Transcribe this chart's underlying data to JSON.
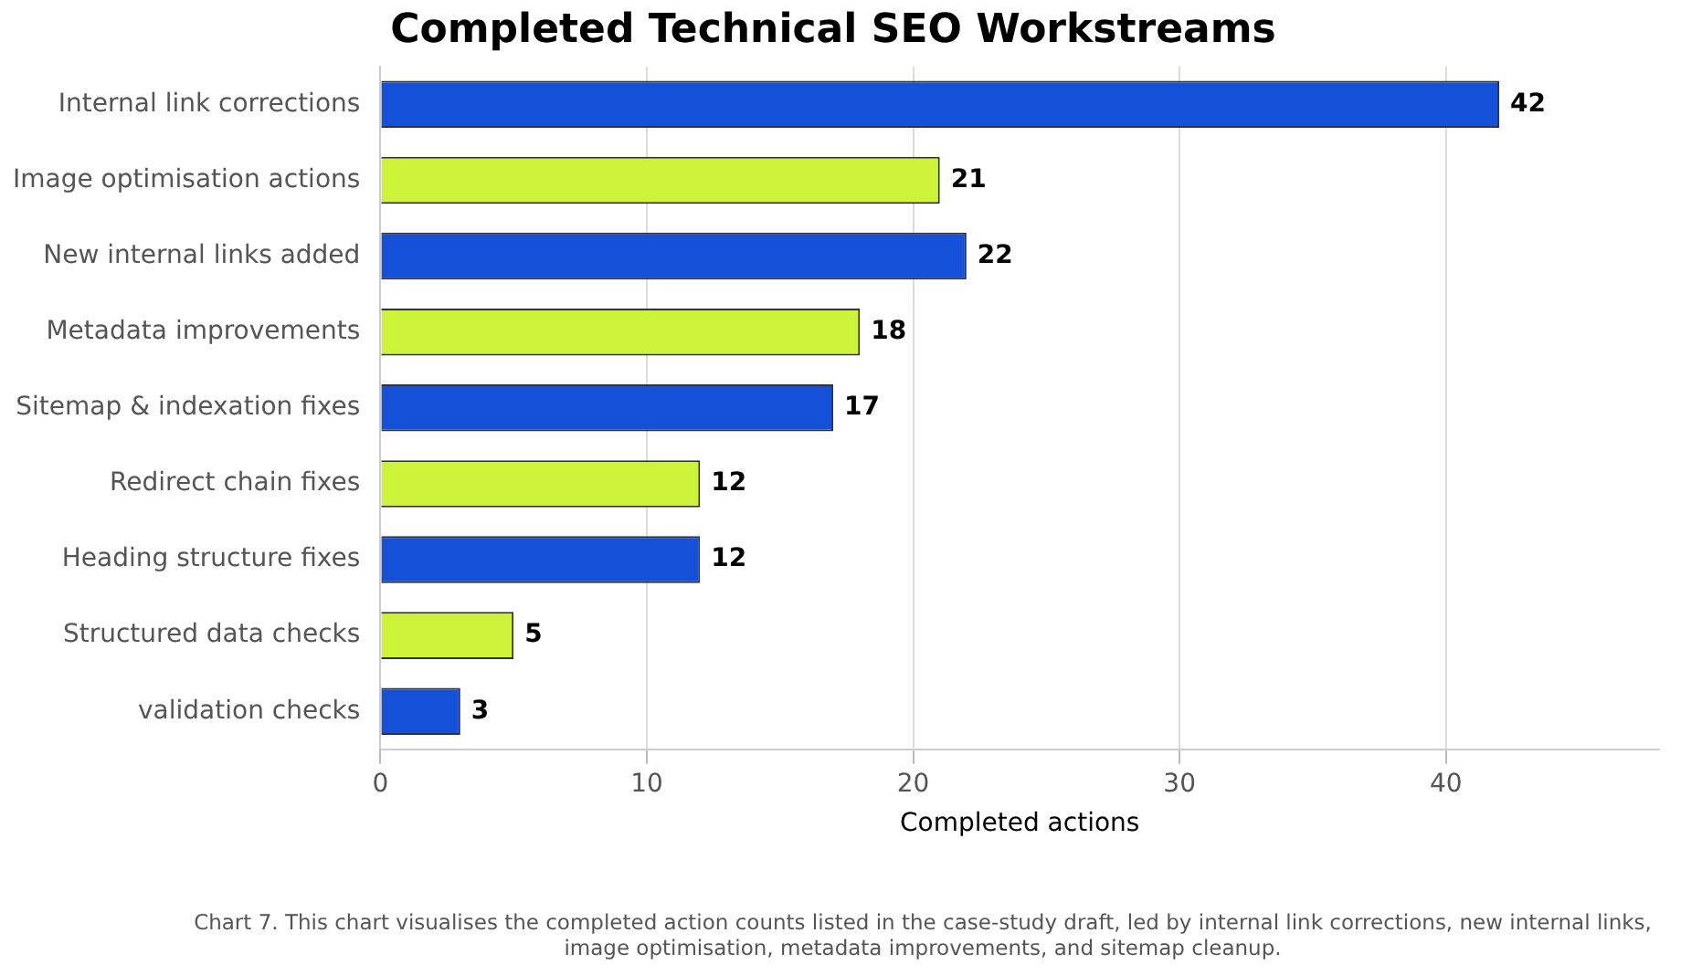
{
  "chart_data": {
    "type": "bar",
    "orientation": "horizontal",
    "title": "Completed Technical SEO Workstreams",
    "xlabel": "Completed actions",
    "categories": [
      "Internal link corrections",
      "Image optimisation actions",
      "New internal links added",
      "Metadata improvements",
      "Sitemap & indexation fixes",
      "Redirect chain fixes",
      "Heading structure fixes",
      "Structured data checks",
      "validation checks"
    ],
    "values": [
      42,
      21,
      22,
      18,
      17,
      12,
      12,
      5,
      3
    ],
    "colors": [
      "#1450d8",
      "#cdf23a",
      "#1450d8",
      "#cdf23a",
      "#1450d8",
      "#cdf23a",
      "#1450d8",
      "#cdf23a",
      "#1450d8"
    ],
    "xlim": [
      0,
      48
    ],
    "xticks": [
      0,
      10,
      20,
      30,
      40
    ],
    "grid": "x",
    "data_labels": true,
    "legend": false,
    "annotations": [
      "Chart 7. This chart visualises the completed action counts listed in the case-study draft, led by internal link corrections, new internal links, image optimisation, metadata improvements, and sitemap cleanup."
    ]
  }
}
